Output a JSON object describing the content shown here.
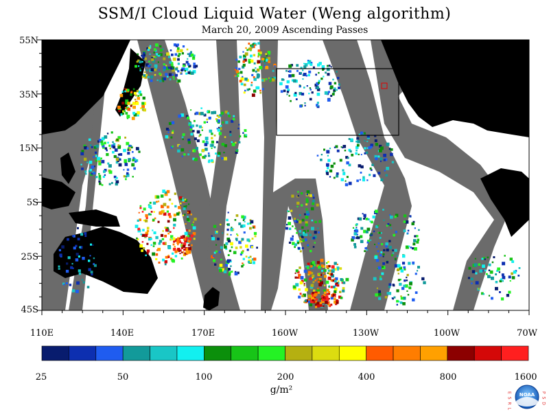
{
  "title": "SSM/I Cloud Liquid Water (Weng algorithm)",
  "subtitle": "March 20, 2009  Ascending Passes",
  "map": {
    "lat_labels": [
      "55N",
      "35N",
      "15N",
      "5S",
      "25S",
      "45S"
    ],
    "lon_labels": [
      "110E",
      "140E",
      "170E",
      "160W",
      "130W",
      "100W",
      "70W"
    ],
    "land_color": "#000000",
    "gap_color": "#6b6b6b",
    "ocean_color": "#ffffff"
  },
  "colorbar": {
    "colors": [
      "#081c6e",
      "#0d2fb0",
      "#1f5cf0",
      "#129a9a",
      "#19c6c6",
      "#12f0f0",
      "#0b8f0b",
      "#17c417",
      "#24f224",
      "#b5b011",
      "#dcdc10",
      "#ffff00",
      "#ff5b00",
      "#ff7d00",
      "#ffa000",
      "#8c0000",
      "#d40808",
      "#ff1f1f"
    ],
    "tick_labels": [
      "25",
      "50",
      "100",
      "200",
      "400",
      "800",
      "1600"
    ],
    "unit": "g/m²"
  },
  "logo": {
    "left_letters": "E S R L",
    "right_letters": "P S D",
    "center_text": "NOAA"
  }
}
